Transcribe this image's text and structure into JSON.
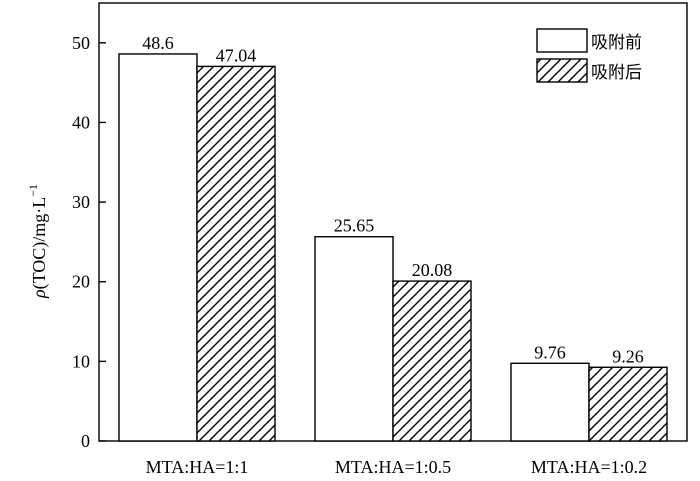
{
  "chart_data": {
    "type": "bar",
    "categories": [
      "MTA:HA=1:1",
      "MTA:HA=1:0.5",
      "MTA:HA=1:0.2"
    ],
    "series": [
      {
        "name": "吸附前",
        "values": [
          48.6,
          25.65,
          9.76
        ],
        "data_labels": [
          "48.6",
          "25.65",
          "9.76"
        ],
        "fill": "white"
      },
      {
        "name": "吸附后",
        "values": [
          47.04,
          20.08,
          9.26
        ],
        "data_labels": [
          "47.04",
          "20.08",
          "9.26"
        ],
        "fill": "hatched"
      }
    ],
    "ylabel": "ρ(TOC)/mg·L",
    "ylabel_superscript": "−1",
    "ylim": [
      0,
      55
    ],
    "yticks": [
      0,
      10,
      20,
      30,
      40,
      50
    ],
    "legend_position": "top-right",
    "grid": false
  },
  "colors": {
    "bar_stroke": "#000000",
    "bar_fill": "#ffffff",
    "hatch": "#000000"
  }
}
